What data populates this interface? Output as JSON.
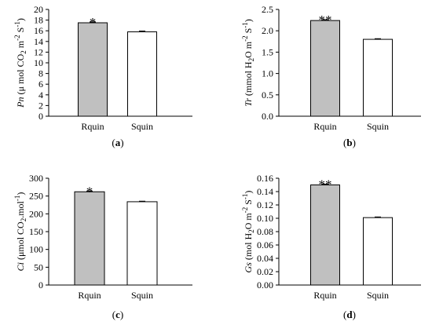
{
  "chart_data": [
    {
      "type": "bar",
      "panel_label_prefix": "(",
      "panel_label_letter": "a",
      "panel_label_suffix": ")",
      "ylabel": {
        "var": "Pn",
        "rest": " (μ mol CO",
        "sub": "2",
        "mid": " m",
        "sup1": "-2",
        "mid2": " S",
        "sup2": "-1",
        "end": ")"
      },
      "categories": [
        "Rquin",
        "Squin"
      ],
      "values": [
        17.5,
        15.8
      ],
      "errors": [
        0.15,
        0.15
      ],
      "significance": [
        "*",
        ""
      ],
      "fills": [
        "#c0c0c0",
        "#ffffff"
      ],
      "ylim": [
        0,
        20
      ],
      "yticks": [
        "0",
        "2",
        "4",
        "6",
        "8",
        "10",
        "12",
        "14",
        "16",
        "18",
        "20"
      ]
    },
    {
      "type": "bar",
      "panel_label_prefix": "(",
      "panel_label_letter": "b",
      "panel_label_suffix": ")",
      "ylabel": {
        "var": "Tr",
        "rest": " (mmol H",
        "sub": "2",
        "mid": "O m",
        "sup1": "-2",
        "mid2": " S",
        "sup2": "-1",
        "end": ")"
      },
      "categories": [
        "Rquin",
        "Squin"
      ],
      "values": [
        2.24,
        1.8
      ],
      "errors": [
        0.02,
        0.015
      ],
      "significance": [
        "**",
        ""
      ],
      "fills": [
        "#c0c0c0",
        "#ffffff"
      ],
      "ylim": [
        0,
        2.5
      ],
      "yticks": [
        "0.0",
        "0.5",
        "1.0",
        "1.5",
        "2.0",
        "2.5"
      ]
    },
    {
      "type": "bar",
      "panel_label_prefix": "(",
      "panel_label_letter": "c",
      "panel_label_suffix": ")",
      "ylabel": {
        "var": "Ci",
        "rest": " (μmol CO",
        "sub": "2",
        "mid": ".mol",
        "sup1": "-1",
        "mid2": "",
        "sup2": "",
        "end": ")"
      },
      "categories": [
        "Rquin",
        "Squin"
      ],
      "values": [
        262,
        234
      ],
      "errors": [
        1.5,
        1.5
      ],
      "significance": [
        "*",
        ""
      ],
      "fills": [
        "#c0c0c0",
        "#ffffff"
      ],
      "ylim": [
        0,
        300
      ],
      "yticks": [
        "0",
        "50",
        "100",
        "150",
        "200",
        "250",
        "300"
      ]
    },
    {
      "type": "bar",
      "panel_label_prefix": "(",
      "panel_label_letter": "d",
      "panel_label_suffix": ")",
      "ylabel": {
        "var": "Gs",
        "rest": " (mol H",
        "sub": "2",
        "mid": "O m",
        "sup1": "-2",
        "mid2": " S",
        "sup2": "-1",
        "end": ")"
      },
      "categories": [
        "Rquin",
        "Squin"
      ],
      "values": [
        0.15,
        0.101
      ],
      "errors": [
        0.001,
        0.001
      ],
      "significance": [
        "**",
        ""
      ],
      "fills": [
        "#c0c0c0",
        "#ffffff"
      ],
      "ylim": [
        0,
        0.16
      ],
      "yticks": [
        "0.00",
        "0.02",
        "0.04",
        "0.06",
        "0.08",
        "0.10",
        "0.12",
        "0.14",
        "0.16"
      ]
    }
  ]
}
